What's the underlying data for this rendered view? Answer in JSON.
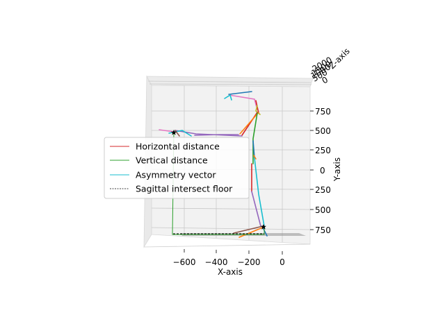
{
  "chart_data": {
    "type": "line",
    "projection": "3d",
    "axes": {
      "x": {
        "label": "X-axis",
        "ticks": [
          "−600",
          "−400",
          "−200",
          "0"
        ],
        "tick_values": [
          -600,
          -400,
          -200,
          0
        ]
      },
      "y": {
        "label": "Y-axis",
        "ticks": [
          "750",
          "500",
          "250",
          "0",
          "250",
          "500",
          "750"
        ]
      },
      "z": {
        "label": "Z-axis",
        "ticks": [
          "2000",
          "1500",
          "1000",
          "500",
          "0"
        ]
      }
    },
    "legend": {
      "placement": "center-left",
      "entries": [
        {
          "label": "Horizontal distance",
          "color": "#d62728",
          "style": "solid"
        },
        {
          "label": "Vertical distance",
          "color": "#2ca02c",
          "style": "solid"
        },
        {
          "label": "Asymmetry vector",
          "color": "#17becf",
          "style": "solid"
        },
        {
          "label": "Sagittal intersect floor",
          "color": "#000000",
          "style": "dashed"
        }
      ]
    },
    "grid": true,
    "pane_color": "#f2f2f2",
    "skeleton_colors": [
      "#1f77b4",
      "#ff7f0e",
      "#2ca02c",
      "#d62728",
      "#9467bd",
      "#8c564b",
      "#e377c2",
      "#7f7f7f",
      "#bcbd22",
      "#17becf"
    ]
  }
}
